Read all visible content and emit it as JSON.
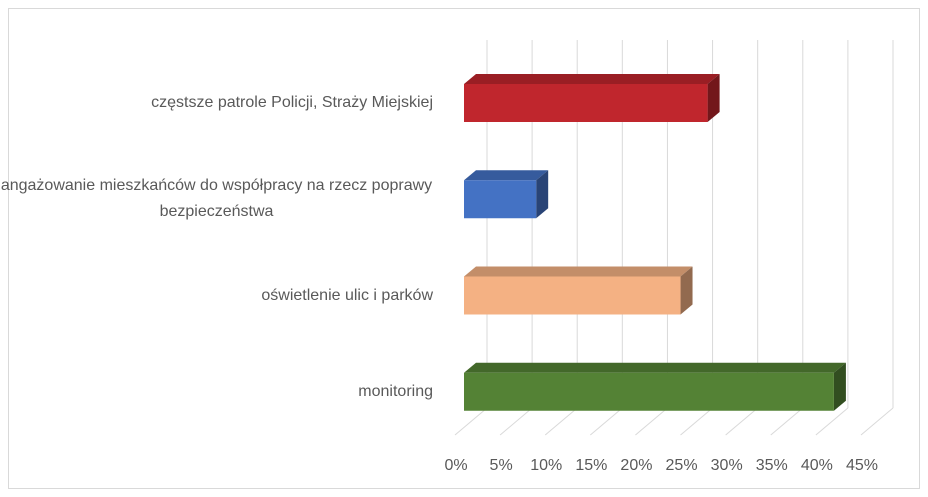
{
  "chart_data": {
    "type": "bar3d_horizontal",
    "categories": [
      "częstsze patrole Policji, Straży Miejskiej",
      "angażowanie mieszkańców do współpracy na rzecz poprawy bezpieczeństwa",
      "oświetlenie ulic i parków",
      "monitoring"
    ],
    "values": [
      27,
      8,
      24,
      41
    ],
    "colors": [
      "#c0262d",
      "#4472c4",
      "#f4b183",
      "#548235"
    ],
    "xlim": [
      0,
      45
    ],
    "xticks": [
      {
        "value": 0,
        "label": "0%"
      },
      {
        "value": 5,
        "label": "5%"
      },
      {
        "value": 10,
        "label": "10%"
      },
      {
        "value": 15,
        "label": "15%"
      },
      {
        "value": 20,
        "label": "20%"
      },
      {
        "value": 25,
        "label": "25%"
      },
      {
        "value": 30,
        "label": "30%"
      },
      {
        "value": 35,
        "label": "35%"
      },
      {
        "value": 40,
        "label": "40%"
      },
      {
        "value": 45,
        "label": "45%"
      }
    ],
    "grid": true
  }
}
